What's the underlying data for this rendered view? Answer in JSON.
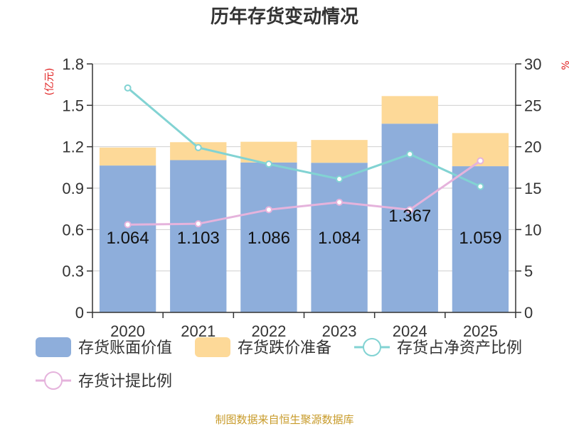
{
  "chart_data": {
    "type": "bar",
    "title": "历年存货变动情况",
    "left_axis_unit": "(亿元)",
    "right_axis_unit": "%",
    "categories": [
      "2020",
      "2021",
      "2022",
      "2023",
      "2024",
      "2025"
    ],
    "ylim_left": [
      0,
      1.8
    ],
    "ylim_right": [
      0,
      30
    ],
    "yticks_left": [
      "0",
      "0.3",
      "0.6",
      "0.9",
      "1.2",
      "1.5",
      "1.8"
    ],
    "yticks_right": [
      "0",
      "5",
      "10",
      "15",
      "20",
      "25",
      "30"
    ],
    "series": [
      {
        "name": "存货账面价值",
        "kind": "bar",
        "stack": "inv",
        "axis": "left",
        "color": "#8eaedb",
        "values": [
          1.064,
          1.103,
          1.086,
          1.084,
          1.367,
          1.059
        ]
      },
      {
        "name": "存货跌价准备",
        "kind": "bar",
        "stack": "inv",
        "axis": "left",
        "color": "#fdd998",
        "values": [
          0.13,
          0.13,
          0.15,
          0.165,
          0.2,
          0.24
        ]
      },
      {
        "name": "存货占净资产比例",
        "kind": "line",
        "axis": "right",
        "color": "#82d3d3",
        "values": [
          27.1,
          19.9,
          17.9,
          16.1,
          19.1,
          15.2
        ]
      },
      {
        "name": "存货计提比例",
        "kind": "line",
        "axis": "right",
        "color": "#e5b3dc",
        "values": [
          10.6,
          10.7,
          12.4,
          13.3,
          12.4,
          18.3
        ]
      }
    ],
    "data_labels": [
      "1.064",
      "1.103",
      "1.086",
      "1.084",
      "1.367",
      "1.059"
    ],
    "grid": true,
    "legend_position": "bottom"
  },
  "source_note": "制图数据来自恒生聚源数据库"
}
